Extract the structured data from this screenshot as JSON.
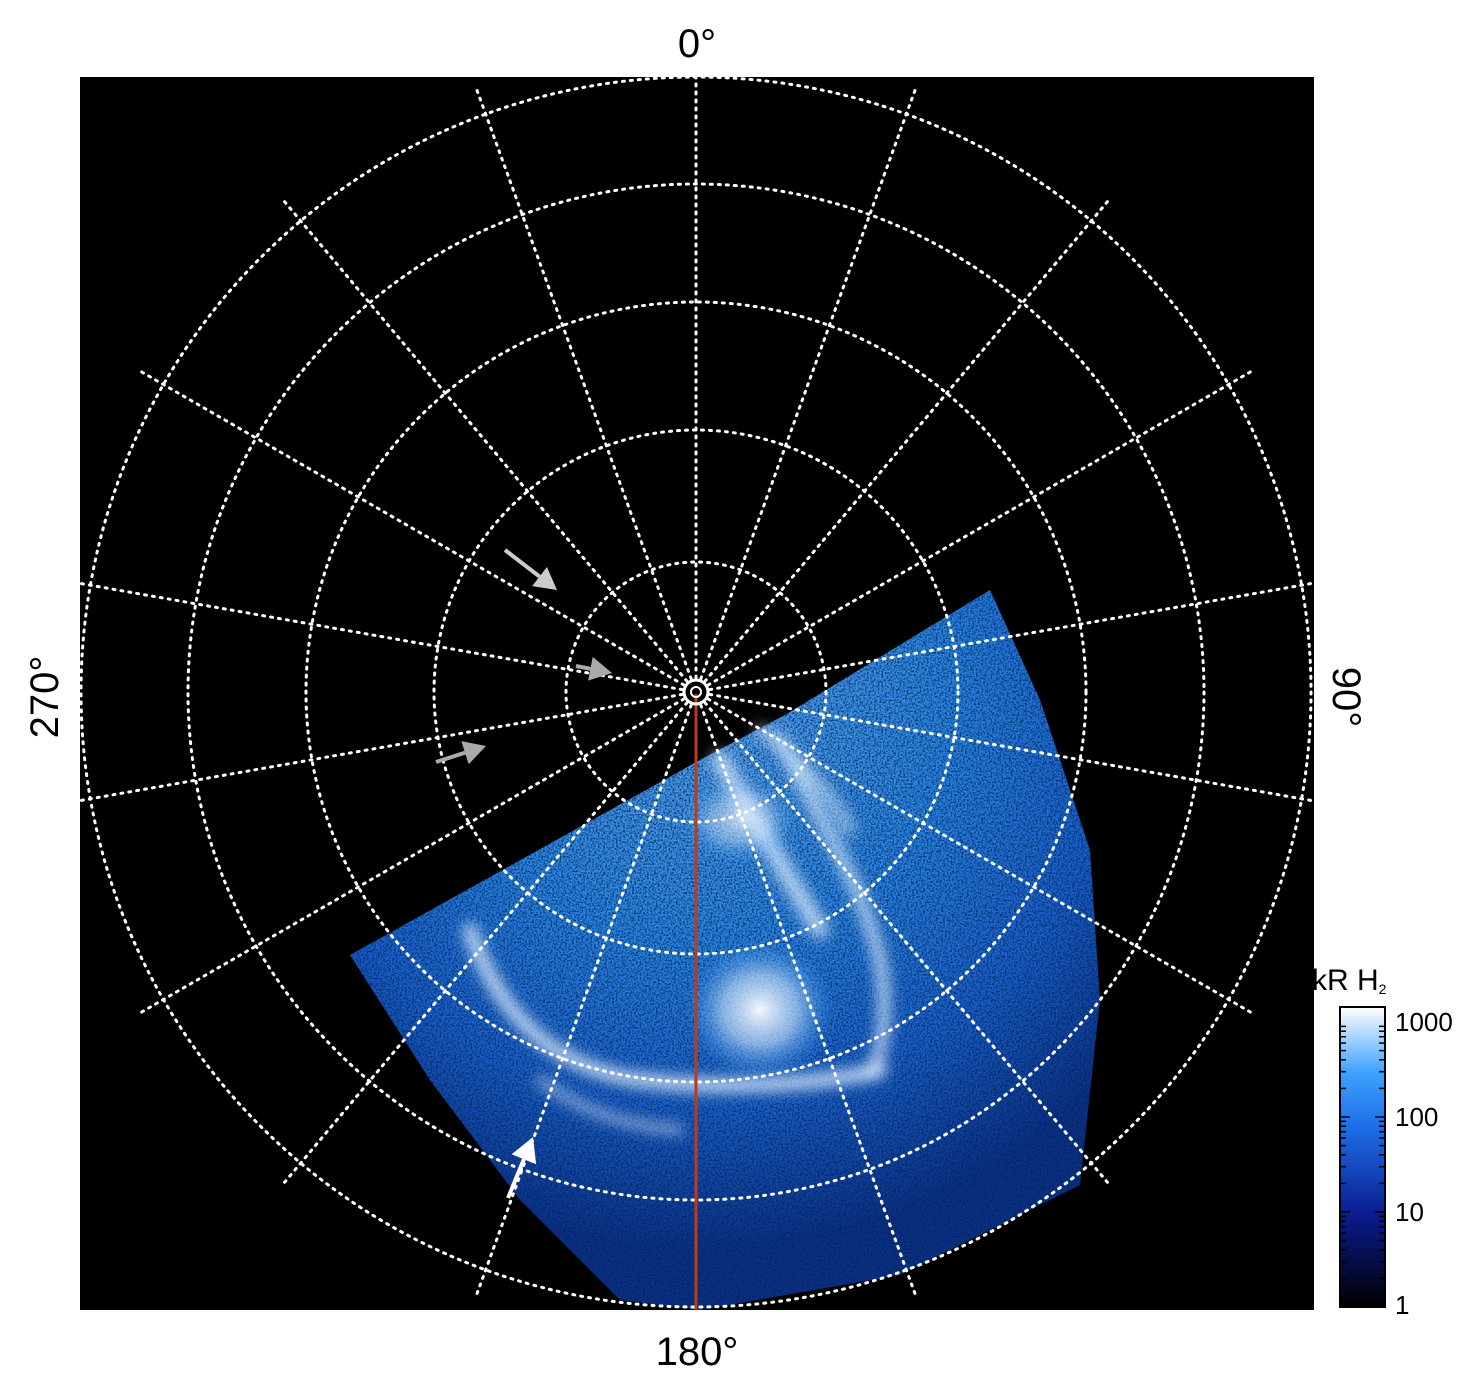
{
  "labels": {
    "top": "0°",
    "bottom": "180°",
    "left": "270°",
    "right": "90°"
  },
  "colorbar": {
    "title_main": "kR H",
    "title_sub": "2",
    "ticks": [
      "1000",
      "100",
      "10",
      "1"
    ],
    "scale": "log",
    "range": [
      1,
      1500
    ],
    "colors": [
      "#000000",
      "#0a1a8c",
      "#1e6ee8",
      "#3ea0ff",
      "#ffffff"
    ]
  },
  "grid": {
    "meridian_step_deg": 20,
    "latitude_rings": 5,
    "style": "dotted",
    "color": "#ffffff"
  },
  "overlay": {
    "reference_line_color": "#c0391b"
  },
  "arrows": [
    {
      "color": "#cccccc",
      "icon": "arrow-icon"
    },
    {
      "color": "#aaaaaa",
      "icon": "arrow-icon"
    },
    {
      "color": "#aaaaaa",
      "icon": "arrow-icon"
    },
    {
      "color": "#ffffff",
      "icon": "arrow-icon"
    }
  ]
}
